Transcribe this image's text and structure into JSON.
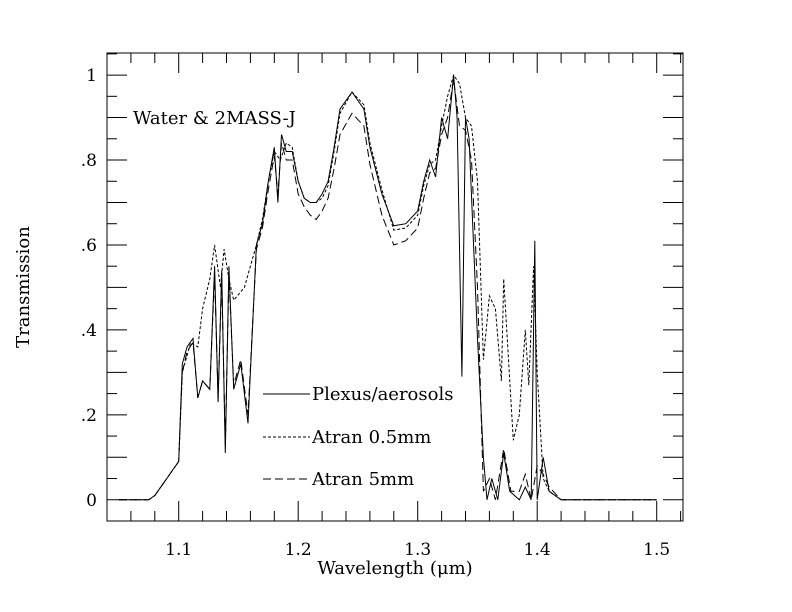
{
  "chart_data": {
    "type": "line",
    "title": "Water & 2MASS-J",
    "xlabel": "Wavelength (μm)",
    "ylabel": "Transmission",
    "xlim": [
      1.04,
      1.522
    ],
    "ylim": [
      -0.05,
      1.052
    ],
    "xticks": [
      1.1,
      1.2,
      1.3,
      1.4,
      1.5
    ],
    "xtick_labels": [
      "1.1",
      "1.2",
      "1.3",
      "1.4",
      "1.5"
    ],
    "yticks": [
      0,
      0.2,
      0.4,
      0.6,
      0.8,
      1
    ],
    "ytick_labels": [
      "0",
      ".2",
      ".4",
      ".6",
      ".8",
      "1"
    ],
    "grid": false,
    "legend_placement": "bottom-center",
    "series": [
      {
        "name": "Plexus/aerosols",
        "style": "solid",
        "x": [
          1.05,
          1.075,
          1.08,
          1.09,
          1.095,
          1.1,
          1.103,
          1.107,
          1.112,
          1.116,
          1.12,
          1.126,
          1.13,
          1.133,
          1.136,
          1.139,
          1.142,
          1.146,
          1.152,
          1.158,
          1.165,
          1.17,
          1.175,
          1.18,
          1.183,
          1.186,
          1.19,
          1.195,
          1.2,
          1.205,
          1.21,
          1.215,
          1.22,
          1.225,
          1.23,
          1.235,
          1.245,
          1.255,
          1.26,
          1.27,
          1.28,
          1.29,
          1.3,
          1.305,
          1.31,
          1.315,
          1.32,
          1.325,
          1.33,
          1.333,
          1.337,
          1.34,
          1.343,
          1.35,
          1.355,
          1.358,
          1.362,
          1.367,
          1.372,
          1.377,
          1.385,
          1.39,
          1.395,
          1.398,
          1.4,
          1.405,
          1.41,
          1.42,
          1.5
        ],
        "y": [
          0,
          0,
          0.01,
          0.05,
          0.07,
          0.09,
          0.32,
          0.36,
          0.38,
          0.24,
          0.28,
          0.26,
          0.55,
          0.23,
          0.54,
          0.11,
          0.55,
          0.26,
          0.32,
          0.18,
          0.6,
          0.65,
          0.75,
          0.83,
          0.7,
          0.86,
          0.82,
          0.82,
          0.75,
          0.71,
          0.7,
          0.7,
          0.72,
          0.75,
          0.83,
          0.92,
          0.96,
          0.92,
          0.83,
          0.72,
          0.645,
          0.65,
          0.68,
          0.75,
          0.8,
          0.76,
          0.9,
          0.85,
          1.0,
          0.9,
          0.29,
          0.9,
          0.85,
          0.38,
          0.1,
          0.0,
          0.05,
          0.0,
          0.11,
          0.02,
          0.0,
          0.03,
          0.0,
          0.61,
          0.0,
          0.1,
          0.02,
          0.0,
          0.0
        ]
      },
      {
        "name": "Atran 0.5mm",
        "style": "short-dash",
        "x": [
          1.05,
          1.075,
          1.08,
          1.09,
          1.095,
          1.1,
          1.103,
          1.11,
          1.116,
          1.12,
          1.126,
          1.13,
          1.135,
          1.138,
          1.142,
          1.146,
          1.155,
          1.165,
          1.17,
          1.175,
          1.18,
          1.185,
          1.19,
          1.195,
          1.2,
          1.205,
          1.21,
          1.215,
          1.22,
          1.225,
          1.23,
          1.235,
          1.245,
          1.255,
          1.26,
          1.27,
          1.28,
          1.29,
          1.3,
          1.305,
          1.31,
          1.315,
          1.32,
          1.325,
          1.33,
          1.335,
          1.34,
          1.345,
          1.35,
          1.355,
          1.36,
          1.365,
          1.37,
          1.372,
          1.38,
          1.385,
          1.39,
          1.393,
          1.397,
          1.4,
          1.405,
          1.41,
          1.42,
          1.5
        ],
        "y": [
          0,
          0,
          0.01,
          0.05,
          0.07,
          0.09,
          0.3,
          0.37,
          0.36,
          0.45,
          0.52,
          0.6,
          0.5,
          0.59,
          0.52,
          0.47,
          0.5,
          0.6,
          0.66,
          0.75,
          0.82,
          0.8,
          0.84,
          0.83,
          0.75,
          0.71,
          0.7,
          0.7,
          0.71,
          0.74,
          0.82,
          0.91,
          0.96,
          0.93,
          0.84,
          0.73,
          0.635,
          0.64,
          0.67,
          0.74,
          0.79,
          0.8,
          0.88,
          0.95,
          1.0,
          0.98,
          0.9,
          0.88,
          0.75,
          0.33,
          0.48,
          0.45,
          0.28,
          0.52,
          0.14,
          0.2,
          0.4,
          0.27,
          0.55,
          0.3,
          0.05,
          0.02,
          0.0,
          0.0
        ]
      },
      {
        "name": "Atran 5mm",
        "style": "long-dash",
        "x": [
          1.05,
          1.075,
          1.08,
          1.09,
          1.095,
          1.1,
          1.103,
          1.107,
          1.112,
          1.116,
          1.12,
          1.126,
          1.13,
          1.133,
          1.136,
          1.139,
          1.142,
          1.146,
          1.152,
          1.158,
          1.165,
          1.17,
          1.175,
          1.18,
          1.183,
          1.186,
          1.19,
          1.195,
          1.2,
          1.205,
          1.21,
          1.215,
          1.22,
          1.225,
          1.23,
          1.235,
          1.245,
          1.255,
          1.26,
          1.27,
          1.28,
          1.29,
          1.3,
          1.305,
          1.31,
          1.315,
          1.32,
          1.325,
          1.33,
          1.335,
          1.34,
          1.345,
          1.35,
          1.355,
          1.36,
          1.365,
          1.372,
          1.378,
          1.385,
          1.39,
          1.395,
          1.4,
          1.405,
          1.41,
          1.42,
          1.5
        ],
        "y": [
          0,
          0,
          0.01,
          0.05,
          0.07,
          0.09,
          0.3,
          0.35,
          0.37,
          0.24,
          0.28,
          0.26,
          0.53,
          0.24,
          0.52,
          0.13,
          0.53,
          0.27,
          0.33,
          0.2,
          0.59,
          0.64,
          0.73,
          0.81,
          0.72,
          0.84,
          0.8,
          0.8,
          0.72,
          0.69,
          0.67,
          0.66,
          0.68,
          0.71,
          0.78,
          0.86,
          0.91,
          0.88,
          0.79,
          0.67,
          0.6,
          0.61,
          0.64,
          0.71,
          0.77,
          0.78,
          0.86,
          0.9,
          0.99,
          0.88,
          0.87,
          0.8,
          0.5,
          0.02,
          0.05,
          0.0,
          0.12,
          0.02,
          0.02,
          0.06,
          0.0,
          0.08,
          0.06,
          0.03,
          0.0,
          0.0
        ]
      }
    ]
  }
}
